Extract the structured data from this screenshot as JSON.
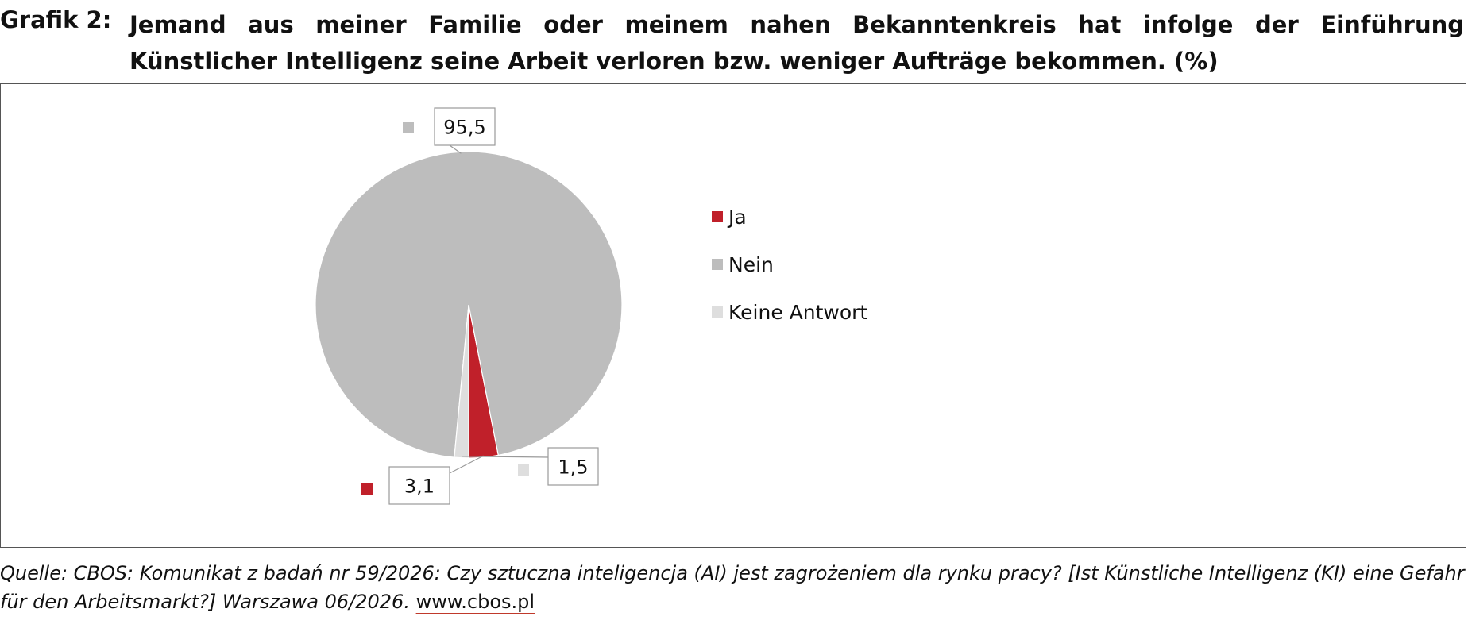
{
  "header": {
    "label": "Grafik 2:",
    "title": "Jemand aus meiner Familie oder meinem nahen Bekanntenkreis hat infolge der Einführung Künstlicher Intelligenz seine Arbeit verloren bzw. weniger Aufträge bekommen. (%)"
  },
  "chart_data": {
    "type": "pie",
    "slices": [
      {
        "label": "Ja",
        "value": 3.1,
        "value_label": "3,1",
        "color": "#c0202a"
      },
      {
        "label": "Nein",
        "value": 95.5,
        "value_label": "95,5",
        "color": "#bdbdbd"
      },
      {
        "label": "Keine Antwort",
        "value": 1.5,
        "value_label": "1,5",
        "color": "#dedede"
      }
    ],
    "legend_position": "right"
  },
  "footer": {
    "source": "Quelle: CBOS: Komunikat z badań nr 59/2026: Czy sztuczna inteligencja (AI) jest zagrożeniem dla rynku pracy? [Ist Künstliche Intelligenz (KI) eine Gefahr für den Arbeitsmarkt?] Warszawa 06/2026.",
    "link": "www.cbos.pl"
  }
}
